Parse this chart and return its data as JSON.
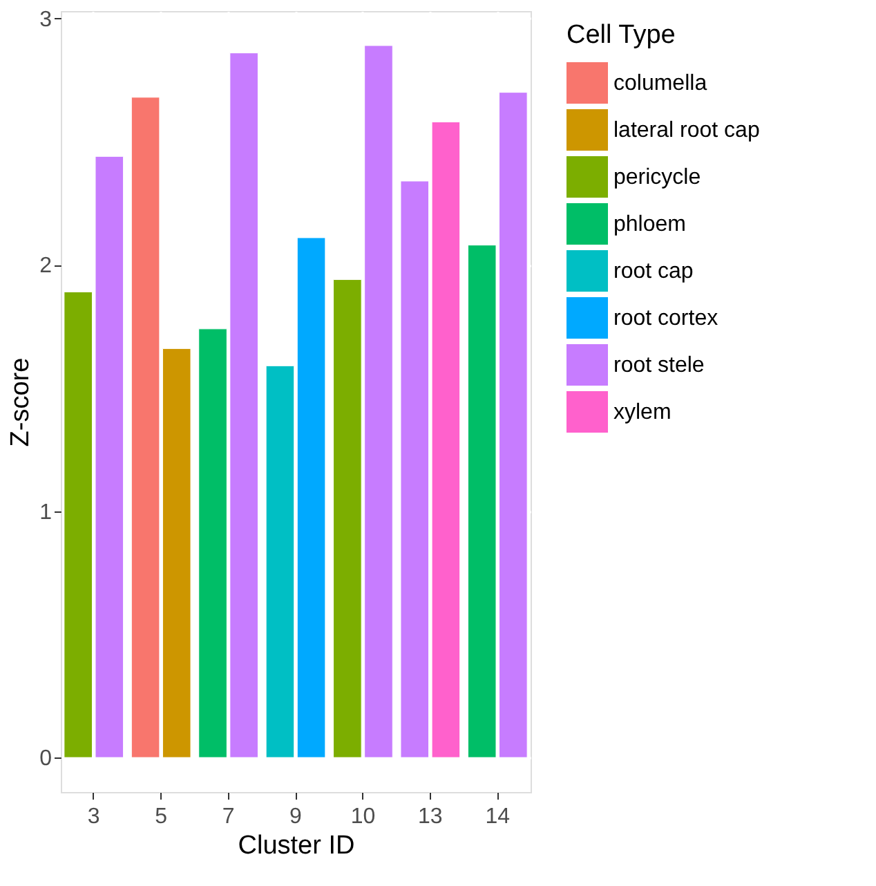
{
  "chart_data": {
    "type": "bar",
    "xlabel": "Cluster ID",
    "ylabel": "Z-score",
    "legend_title": "Cell Type",
    "categories": [
      "3",
      "5",
      "7",
      "9",
      "10",
      "13",
      "14"
    ],
    "series": [
      {
        "name": "columella",
        "color": "#f8766d",
        "values": [
          null,
          2.68,
          null,
          null,
          null,
          null,
          null
        ]
      },
      {
        "name": "lateral root cap",
        "color": "#cd9600",
        "values": [
          null,
          1.66,
          null,
          null,
          null,
          null,
          null
        ]
      },
      {
        "name": "pericycle",
        "color": "#7cae00",
        "values": [
          1.89,
          null,
          null,
          null,
          1.94,
          null,
          null
        ]
      },
      {
        "name": "phloem",
        "color": "#00be67",
        "values": [
          null,
          null,
          1.74,
          null,
          null,
          null,
          2.08
        ]
      },
      {
        "name": "root cap",
        "color": "#00bfc4",
        "values": [
          null,
          null,
          null,
          1.59,
          null,
          null,
          null
        ]
      },
      {
        "name": "root cortex",
        "color": "#00a9ff",
        "values": [
          null,
          null,
          null,
          2.11,
          null,
          null,
          null
        ]
      },
      {
        "name": "root stele",
        "color": "#c77cff",
        "values": [
          2.44,
          null,
          2.86,
          null,
          2.89,
          2.34,
          2.7
        ]
      },
      {
        "name": "xylem",
        "color": "#ff61cc",
        "values": [
          null,
          null,
          null,
          null,
          null,
          2.58,
          null
        ]
      }
    ],
    "ylim": [
      -0.14,
      3.03
    ],
    "yticks": [
      0,
      1,
      2,
      3
    ],
    "grid": true,
    "legend": "right"
  }
}
